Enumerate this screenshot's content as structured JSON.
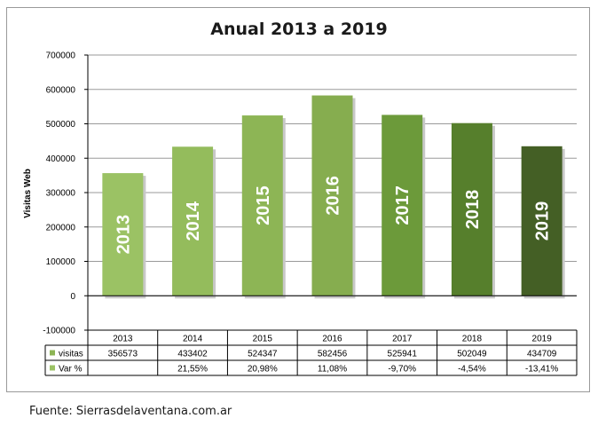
{
  "chart_data": {
    "type": "bar",
    "title": "Anual 2013 a 2019",
    "ylabel": "Visitas Web",
    "ylim": [
      -100000,
      700000
    ],
    "yticks": [
      "700000",
      "600000",
      "500000",
      "400000",
      "300000",
      "200000",
      "100000",
      "0",
      "-100000"
    ],
    "grid": true,
    "categories": [
      "2013",
      "2014",
      "2015",
      "2016",
      "2017",
      "2018",
      "2019"
    ],
    "series": [
      {
        "name": "visitas",
        "values": [
          356573,
          433402,
          524347,
          582456,
          525941,
          502049,
          434709
        ]
      }
    ],
    "bar_labels": [
      "2013",
      "2014",
      "2015",
      "2016",
      "2017",
      "2018",
      "2019"
    ],
    "bar_colors": [
      "#9bc264",
      "#94bc5c",
      "#8db555",
      "#86ad4f",
      "#6c9a3a",
      "#567f2c",
      "#445f25"
    ],
    "table": {
      "headers": [
        "2013",
        "2014",
        "2015",
        "2016",
        "2017",
        "2018",
        "2019"
      ],
      "rows": [
        {
          "label": "visitas",
          "values": [
            "356573",
            "433402",
            "524347",
            "582456",
            "525941",
            "502049",
            "434709"
          ]
        },
        {
          "label": "Var %",
          "values": [
            "",
            "21,55%",
            "20,98%",
            "11,08%",
            "-9,70%",
            "-4,54%",
            "-13,41%"
          ]
        }
      ]
    }
  },
  "source": "Fuente: Sierrasdelaventana.com.ar"
}
